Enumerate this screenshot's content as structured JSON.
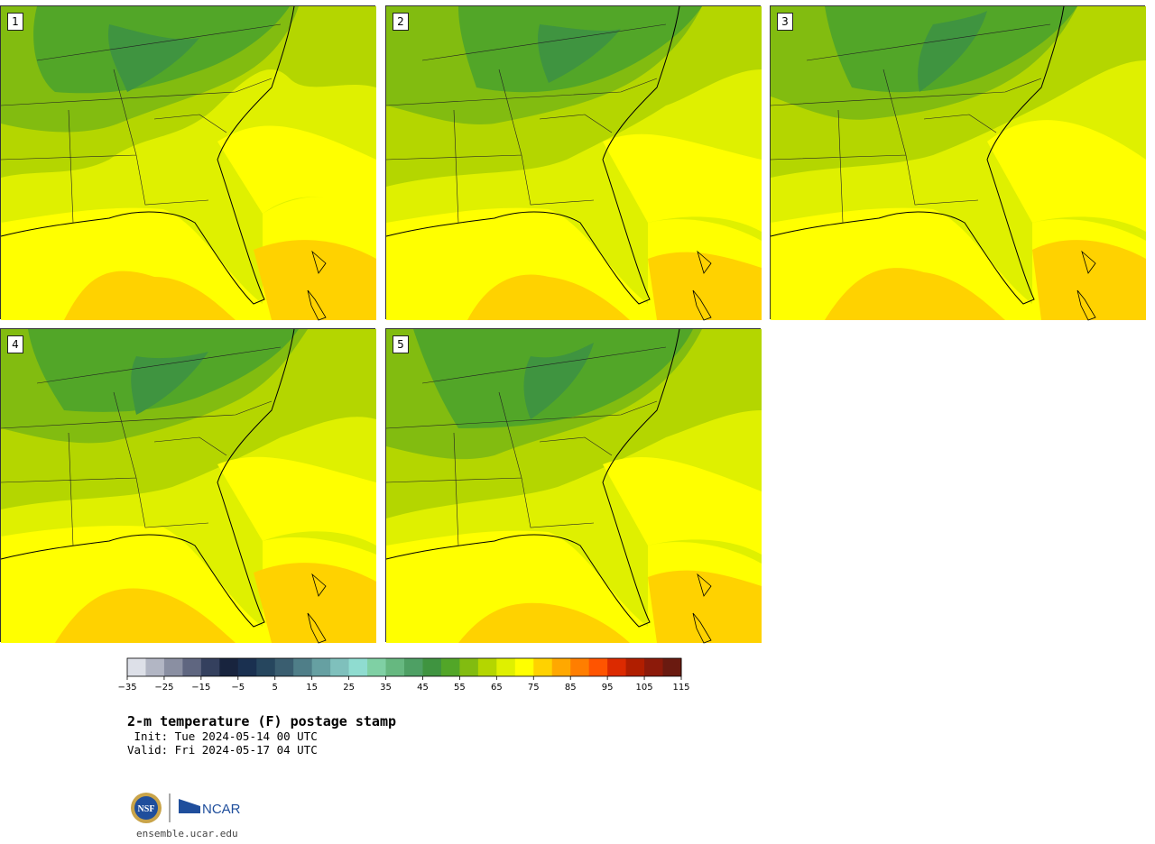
{
  "panels": [
    {
      "label": "1"
    },
    {
      "label": "2"
    },
    {
      "label": "3"
    },
    {
      "label": "4"
    },
    {
      "label": "5"
    }
  ],
  "colorbar": {
    "ticks": [
      "−35",
      "−25",
      "−15",
      "−5",
      "5",
      "15",
      "25",
      "35",
      "45",
      "55",
      "65",
      "75",
      "85",
      "95",
      "105",
      "115"
    ],
    "colors": [
      "#dde0e8",
      "#b2b6c4",
      "#8a8fa2",
      "#5f6680",
      "#34405e",
      "#18243e",
      "#1a3050",
      "#26465e",
      "#3a5e70",
      "#4f7e88",
      "#66a0a2",
      "#7fc0bc",
      "#8fdcd0",
      "#7fd0a4",
      "#66b880",
      "#4ea064",
      "#3f9440",
      "#52a628",
      "#82bc10",
      "#b4d600",
      "#dff000",
      "#ffff00",
      "#ffd200",
      "#ffa800",
      "#ff7e00",
      "#ff5400",
      "#dc2a00",
      "#b01e00",
      "#8c1a0a",
      "#6a1a10"
    ]
  },
  "title": "2-m temperature (F) postage stamp",
  "init_text": " Init: Tue 2024-05-14 00 UTC",
  "valid_text": "Valid: Fri 2024-05-17 04 UTC",
  "logo": {
    "nsf": "NSF",
    "ncar": "NCAR"
  },
  "site": "ensemble.ucar.edu"
}
